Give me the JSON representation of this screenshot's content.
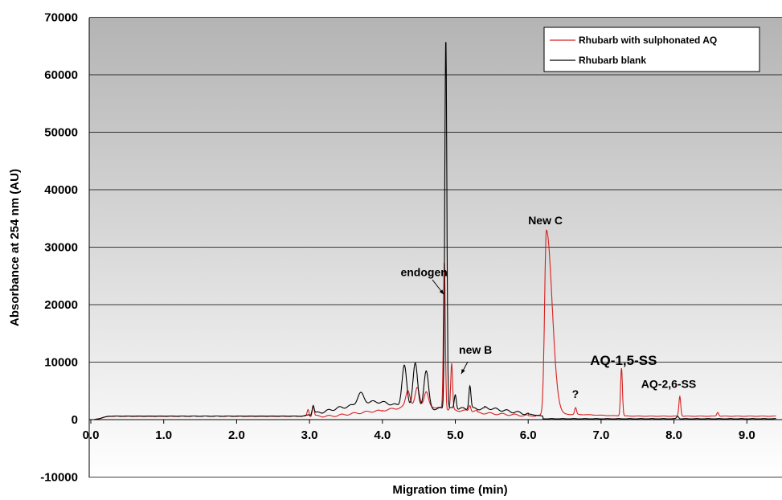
{
  "chart_data": {
    "type": "line",
    "xlabel": "Migration time (min)",
    "ylabel": "Absorbance at 254 nm (AU)",
    "xlim": [
      0,
      9.4
    ],
    "ylim": [
      -10000,
      70000
    ],
    "x_ticks": [
      "0.0",
      "1.0",
      "2.0",
      "3.0",
      "4.0",
      "5.0",
      "6.0",
      "7.0",
      "8.0",
      "9.0"
    ],
    "y_ticks": [
      "70000",
      "60000",
      "50000",
      "40000",
      "30000",
      "20000",
      "10000",
      "0",
      "-10000"
    ],
    "grid": true,
    "legend_position": "top-right",
    "series": [
      {
        "name": "Rhubarb with sulphonated AQ",
        "color": "#d62020",
        "peaks": [
          {
            "x": 2.98,
            "y": 1800
          },
          {
            "x": 3.05,
            "y": 2800
          },
          {
            "x": 4.35,
            "y": 4200
          },
          {
            "x": 4.48,
            "y": 4500
          },
          {
            "x": 4.6,
            "y": 3800
          },
          {
            "x": 4.85,
            "y": 26800
          },
          {
            "x": 4.95,
            "y": 9000
          },
          {
            "x": 5.2,
            "y": 2200
          },
          {
            "x": 6.25,
            "y": 33000
          },
          {
            "x": 6.65,
            "y": 2000
          },
          {
            "x": 7.28,
            "y": 8700
          },
          {
            "x": 8.08,
            "y": 3800
          },
          {
            "x": 8.6,
            "y": 1200
          }
        ]
      },
      {
        "name": "Rhubarb blank",
        "color": "#000000",
        "peaks": [
          {
            "x": 3.05,
            "y": 2000
          },
          {
            "x": 3.7,
            "y": 3200
          },
          {
            "x": 4.3,
            "y": 8300
          },
          {
            "x": 4.45,
            "y": 8800
          },
          {
            "x": 4.6,
            "y": 7500
          },
          {
            "x": 4.87,
            "y": 65500
          },
          {
            "x": 5.0,
            "y": 3500
          },
          {
            "x": 5.2,
            "y": 5000
          },
          {
            "x": 8.05,
            "y": 500
          }
        ]
      }
    ],
    "annotations": [
      {
        "text": "endogen",
        "x": 4.25,
        "y": 25000,
        "size": "normal"
      },
      {
        "text": "new B",
        "x": 5.05,
        "y": 11500,
        "size": "normal"
      },
      {
        "text": "New C",
        "x": 6.0,
        "y": 34000,
        "size": "normal"
      },
      {
        "text": "AQ-1,5-SS",
        "x": 6.85,
        "y": 9500,
        "size": "big"
      },
      {
        "text": "?",
        "x": 6.6,
        "y": 3800,
        "size": "normal"
      },
      {
        "text": "AQ-2,6-SS",
        "x": 7.55,
        "y": 5500,
        "size": "normal"
      }
    ]
  }
}
